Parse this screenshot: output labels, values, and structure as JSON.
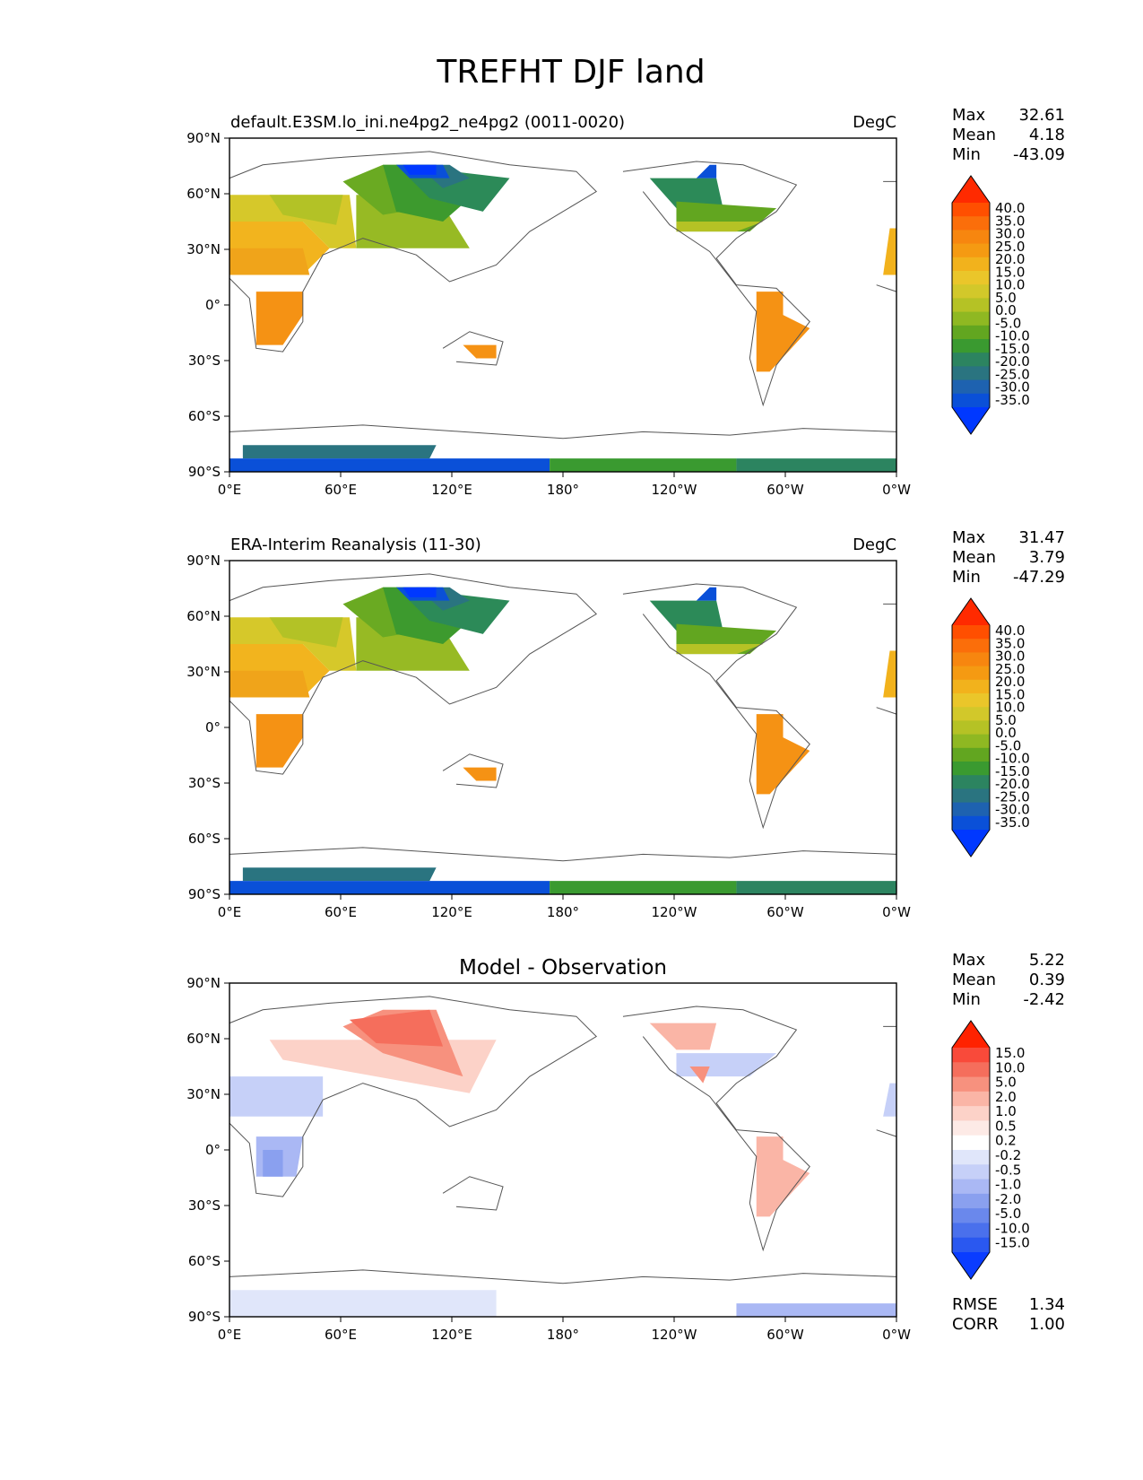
{
  "figure": {
    "title": "TREFHT DJF land",
    "x_ticks": [
      "0°E",
      "60°E",
      "120°E",
      "180°",
      "120°W",
      "60°W",
      "0°W"
    ],
    "y_ticks": [
      "90°N",
      "60°N",
      "30°N",
      "0°",
      "30°S",
      "60°S",
      "90°S"
    ]
  },
  "panels": [
    {
      "id": "test",
      "left_title": "default.E3SM.lo_ini.ne4pg2_ne4pg2 (0011-0020)",
      "center_title": "",
      "units": "DegC",
      "stats": [
        {
          "label": "Max",
          "value": "32.61"
        },
        {
          "label": "Mean",
          "value": "4.18"
        },
        {
          "label": "Min",
          "value": "-43.09"
        }
      ],
      "colorbar_ticks": [
        "40.0",
        "35.0",
        "30.0",
        "25.0",
        "20.0",
        "15.0",
        "10.0",
        "5.0",
        "0.0",
        "-5.0",
        "-10.0",
        "-15.0",
        "-20.0",
        "-25.0",
        "-30.0",
        "-35.0"
      ],
      "colorbar_colors": [
        "#ff2a00",
        "#ff4f00",
        "#fb6e0a",
        "#f7860f",
        "#f59a12",
        "#f2b21c",
        "#eac62a",
        "#d2c82a",
        "#b5c225",
        "#8fb822",
        "#62a620",
        "#3a9a30",
        "#2c8460",
        "#2a7480",
        "#1e62b0",
        "#0a50d8",
        "#0038ff"
      ]
    },
    {
      "id": "reference",
      "left_title": "ERA-Interim Reanalysis (11-30)",
      "center_title": "",
      "units": "DegC",
      "stats": [
        {
          "label": "Max",
          "value": "31.47"
        },
        {
          "label": "Mean",
          "value": "3.79"
        },
        {
          "label": "Min",
          "value": "-47.29"
        }
      ],
      "colorbar_ticks": [
        "40.0",
        "35.0",
        "30.0",
        "25.0",
        "20.0",
        "15.0",
        "10.0",
        "5.0",
        "0.0",
        "-5.0",
        "-10.0",
        "-15.0",
        "-20.0",
        "-25.0",
        "-30.0",
        "-35.0"
      ],
      "colorbar_colors": [
        "#ff2a00",
        "#ff4f00",
        "#fb6e0a",
        "#f7860f",
        "#f59a12",
        "#f2b21c",
        "#eac62a",
        "#d2c82a",
        "#b5c225",
        "#8fb822",
        "#62a620",
        "#3a9a30",
        "#2c8460",
        "#2a7480",
        "#1e62b0",
        "#0a50d8",
        "#0038ff"
      ]
    },
    {
      "id": "difference",
      "left_title": "",
      "center_title": "Model - Observation",
      "units": "",
      "stats": [
        {
          "label": "Max",
          "value": "5.22"
        },
        {
          "label": "Mean",
          "value": "0.39"
        },
        {
          "label": "Min",
          "value": "-2.42"
        }
      ],
      "extra_stats": [
        {
          "label": "RMSE",
          "value": "1.34"
        },
        {
          "label": "CORR",
          "value": "1.00"
        }
      ],
      "colorbar_ticks": [
        "15.0",
        "10.0",
        "5.0",
        "2.0",
        "1.0",
        "0.5",
        "0.2",
        "-0.2",
        "-0.5",
        "-1.0",
        "-2.0",
        "-5.0",
        "-10.0",
        "-15.0"
      ],
      "colorbar_colors": [
        "#ff2200",
        "#f94a3a",
        "#f56e5c",
        "#f7917e",
        "#fab5a6",
        "#fcd2c8",
        "#fdeae6",
        "#ffffff",
        "#e0e6fa",
        "#c6d0f8",
        "#aab8f4",
        "#8aa0ef",
        "#6a88ec",
        "#4a70ec",
        "#2a58f0",
        "#0a3cff"
      ]
    }
  ]
}
